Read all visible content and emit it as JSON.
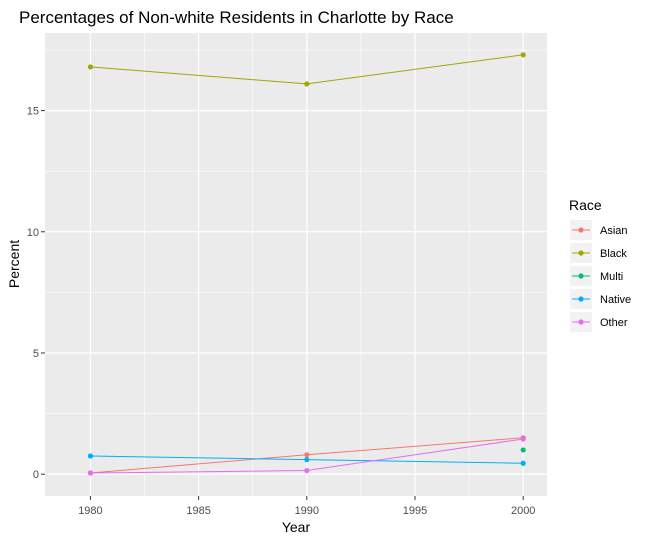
{
  "chart_data": {
    "type": "line",
    "title": "Percentages of Non-white Residents in Charlotte by Race",
    "xlabel": "Year",
    "ylabel": "Percent",
    "xlim": [
      1977.9,
      2001.1
    ],
    "ylim": [
      -0.9,
      18.2
    ],
    "x_ticks": [
      1980,
      1985,
      1990,
      1995,
      2000
    ],
    "y_ticks": [
      0,
      5,
      10,
      15
    ],
    "grid": true,
    "legend": {
      "title": "Race",
      "position": "right"
    },
    "series": [
      {
        "name": "Asian",
        "color": "#F8766D",
        "x": [
          1980,
          1990,
          2000
        ],
        "values": [
          0.05,
          0.8,
          1.5
        ]
      },
      {
        "name": "Black",
        "color": "#A3A500",
        "x": [
          1980,
          1990,
          2000
        ],
        "values": [
          16.8,
          16.1,
          17.3
        ]
      },
      {
        "name": "Multi",
        "color": "#00BF7D",
        "x": [
          2000
        ],
        "values": [
          1.0
        ]
      },
      {
        "name": "Native",
        "color": "#00B0F6",
        "x": [
          1980,
          1990,
          2000
        ],
        "values": [
          0.75,
          0.6,
          0.45
        ]
      },
      {
        "name": "Other",
        "color": "#E76BF3",
        "x": [
          1980,
          1990,
          2000
        ],
        "values": [
          0.05,
          0.15,
          1.45
        ]
      }
    ]
  }
}
